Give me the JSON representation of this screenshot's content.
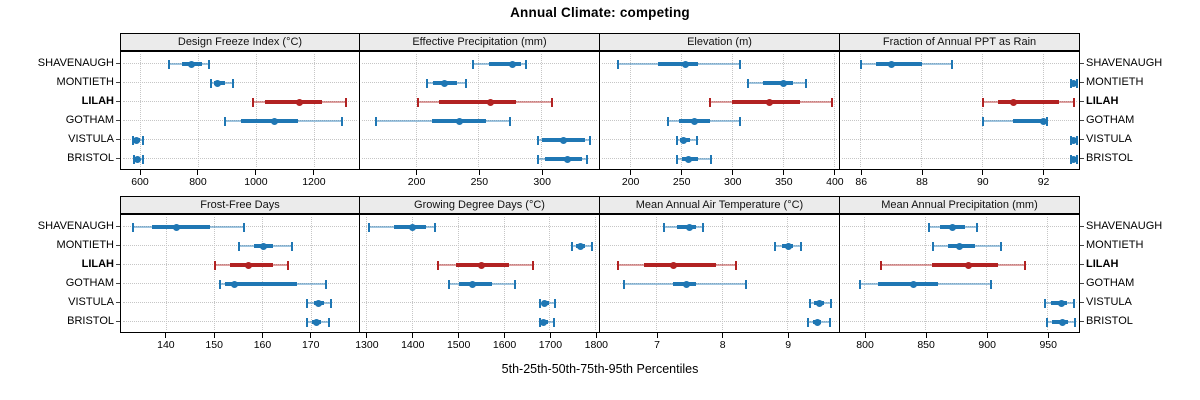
{
  "title": "Annual Climate: competing",
  "caption": "5th-25th-50th-75th-95th Percentiles",
  "percentile_levels": [
    "5th",
    "25th",
    "50th",
    "75th",
    "95th"
  ],
  "locations": [
    "SHAVENAUGH",
    "MONTIETH",
    "LILAH",
    "GOTHAM",
    "VISTULA",
    "BRISTOL"
  ],
  "highlight_location": "LILAH",
  "colors": {
    "normal": "#1f77b4",
    "highlight": "#b22222",
    "strip_bg": "#ebebeb",
    "grid": "#c6c6c6",
    "panel_border": "#000000"
  },
  "chart_data": [
    {
      "type": "dot-interval",
      "panel": "Design Freeze Index (°C)",
      "band": "top",
      "xlim": [
        531,
        1359
      ],
      "xticks": [
        600,
        800,
        1000,
        1200
      ],
      "series": [
        {
          "name": "SHAVENAUGH",
          "percentiles": [
            697,
            740,
            775,
            812,
            834
          ]
        },
        {
          "name": "MONTIETH",
          "percentiles": [
            840,
            852,
            864,
            890,
            919
          ]
        },
        {
          "name": "LILAH",
          "percentiles": [
            988,
            1028,
            1147,
            1225,
            1307
          ]
        },
        {
          "name": "GOTHAM",
          "percentiles": [
            891,
            944,
            1059,
            1140,
            1295
          ]
        },
        {
          "name": "VISTULA",
          "percentiles": [
            572,
            580,
            586,
            596,
            606
          ]
        },
        {
          "name": "BRISTOL",
          "percentiles": [
            575,
            582,
            589,
            598,
            608
          ]
        }
      ]
    },
    {
      "type": "dot-interval",
      "panel": "Effective Precipitation (mm)",
      "band": "top",
      "xlim": [
        155,
        346
      ],
      "xticks": [
        200,
        250,
        300
      ],
      "series": [
        {
          "name": "SHAVENAUGH",
          "percentiles": [
            245,
            258,
            276,
            283,
            287
          ]
        },
        {
          "name": "MONTIETH",
          "percentiles": [
            208,
            213,
            222,
            232,
            239
          ]
        },
        {
          "name": "LILAH",
          "percentiles": [
            201,
            218,
            259,
            279,
            308
          ]
        },
        {
          "name": "GOTHAM",
          "percentiles": [
            168,
            212,
            234,
            255,
            274
          ]
        },
        {
          "name": "VISTULA",
          "percentiles": [
            297,
            300,
            317,
            334,
            338
          ]
        },
        {
          "name": "BRISTOL",
          "percentiles": [
            297,
            302,
            320,
            332,
            336
          ]
        }
      ]
    },
    {
      "type": "dot-interval",
      "panel": "Elevation (m)",
      "band": "top",
      "xlim": [
        170,
        405
      ],
      "xticks": [
        200,
        250,
        300,
        350,
        400
      ],
      "series": [
        {
          "name": "SHAVENAUGH",
          "percentiles": [
            188,
            227,
            254,
            266,
            307
          ]
        },
        {
          "name": "MONTIETH",
          "percentiles": [
            315,
            330,
            350,
            359,
            372
          ]
        },
        {
          "name": "LILAH",
          "percentiles": [
            278,
            299,
            336,
            366,
            397
          ]
        },
        {
          "name": "GOTHAM",
          "percentiles": [
            237,
            247,
            263,
            278,
            307
          ]
        },
        {
          "name": "VISTULA",
          "percentiles": [
            245,
            248,
            252,
            258,
            265
          ]
        },
        {
          "name": "BRISTOL",
          "percentiles": [
            245,
            250,
            257,
            266,
            279
          ]
        }
      ]
    },
    {
      "type": "dot-interval",
      "panel": "Fraction of Annual PPT as Rain",
      "band": "top",
      "xlim": [
        85.3,
        93.2
      ],
      "xticks": [
        86,
        88,
        90,
        92
      ],
      "series": [
        {
          "name": "SHAVENAUGH",
          "percentiles": [
            86.0,
            86.5,
            87.0,
            88.0,
            89.0
          ]
        },
        {
          "name": "MONTIETH",
          "percentiles": [
            92.9,
            93.0,
            93.0,
            93.0,
            93.1
          ]
        },
        {
          "name": "LILAH",
          "percentiles": [
            90.0,
            90.5,
            91.0,
            92.5,
            93.0
          ]
        },
        {
          "name": "GOTHAM",
          "percentiles": [
            90.0,
            91.0,
            92.0,
            92.0,
            92.1
          ]
        },
        {
          "name": "VISTULA",
          "percentiles": [
            92.9,
            93.0,
            93.0,
            93.0,
            93.1
          ]
        },
        {
          "name": "BRISTOL",
          "percentiles": [
            92.9,
            93.0,
            93.0,
            93.0,
            93.1
          ]
        }
      ]
    },
    {
      "type": "dot-interval",
      "panel": "Frost-Free Days",
      "band": "bottom",
      "xlim": [
        130.5,
        180.2
      ],
      "xticks": [
        140,
        150,
        160,
        170
      ],
      "series": [
        {
          "name": "SHAVENAUGH",
          "percentiles": [
            133,
            137,
            142,
            149,
            156
          ]
        },
        {
          "name": "MONTIETH",
          "percentiles": [
            155,
            158,
            160,
            162,
            166
          ]
        },
        {
          "name": "LILAH",
          "percentiles": [
            150,
            153,
            157,
            162,
            165
          ]
        },
        {
          "name": "GOTHAM",
          "percentiles": [
            151,
            152,
            154,
            167,
            173
          ]
        },
        {
          "name": "VISTULA",
          "percentiles": [
            169,
            170.5,
            171.5,
            172.5,
            174
          ]
        },
        {
          "name": "BRISTOL",
          "percentiles": [
            169,
            170,
            171,
            172,
            173.5
          ]
        }
      ]
    },
    {
      "type": "dot-interval",
      "panel": "Growing Degree Days (°C)",
      "band": "bottom",
      "xlim": [
        1285,
        1808
      ],
      "xticks": [
        1300,
        1400,
        1500,
        1600,
        1700,
        1800
      ],
      "series": [
        {
          "name": "SHAVENAUGH",
          "percentiles": [
            1305,
            1360,
            1400,
            1428,
            1448
          ]
        },
        {
          "name": "MONTIETH",
          "percentiles": [
            1746,
            1756,
            1766,
            1776,
            1790
          ]
        },
        {
          "name": "LILAH",
          "percentiles": [
            1454,
            1495,
            1550,
            1610,
            1661
          ]
        },
        {
          "name": "GOTHAM",
          "percentiles": [
            1480,
            1500,
            1530,
            1572,
            1622
          ]
        },
        {
          "name": "VISTULA",
          "percentiles": [
            1678,
            1683,
            1687,
            1697,
            1710
          ]
        },
        {
          "name": "BRISTOL",
          "percentiles": [
            1677,
            1681,
            1685,
            1695,
            1708
          ]
        }
      ]
    },
    {
      "type": "dot-interval",
      "panel": "Mean Annual Air Temperature (°C)",
      "band": "bottom",
      "xlim": [
        6.13,
        9.79
      ],
      "xticks": [
        7,
        8,
        9
      ],
      "series": [
        {
          "name": "SHAVENAUGH",
          "percentiles": [
            7.1,
            7.3,
            7.5,
            7.6,
            7.7
          ]
        },
        {
          "name": "MONTIETH",
          "percentiles": [
            8.8,
            8.9,
            9.0,
            9.08,
            9.2
          ]
        },
        {
          "name": "LILAH",
          "percentiles": [
            6.4,
            6.8,
            7.25,
            7.9,
            8.2
          ]
        },
        {
          "name": "GOTHAM",
          "percentiles": [
            6.5,
            7.25,
            7.45,
            7.6,
            8.35
          ]
        },
        {
          "name": "VISTULA",
          "percentiles": [
            9.33,
            9.4,
            9.48,
            9.55,
            9.66
          ]
        },
        {
          "name": "BRISTOL",
          "percentiles": [
            9.3,
            9.38,
            9.44,
            9.5,
            9.64
          ]
        }
      ]
    },
    {
      "type": "dot-interval",
      "panel": "Mean Annual Precipitation (mm)",
      "band": "bottom",
      "xlim": [
        779.5,
        976
      ],
      "xticks": [
        800,
        850,
        900,
        950
      ],
      "series": [
        {
          "name": "SHAVENAUGH",
          "percentiles": [
            852,
            861,
            872,
            882,
            892
          ]
        },
        {
          "name": "MONTIETH",
          "percentiles": [
            856,
            868,
            877,
            890,
            911
          ]
        },
        {
          "name": "LILAH",
          "percentiles": [
            813,
            855,
            885,
            909,
            931
          ]
        },
        {
          "name": "GOTHAM",
          "percentiles": [
            796,
            811,
            840,
            860,
            903
          ]
        },
        {
          "name": "VISTULA",
          "percentiles": [
            947,
            952,
            961,
            965,
            971
          ]
        },
        {
          "name": "BRISTOL",
          "percentiles": [
            949,
            953,
            962,
            966,
            972
          ]
        }
      ]
    }
  ]
}
